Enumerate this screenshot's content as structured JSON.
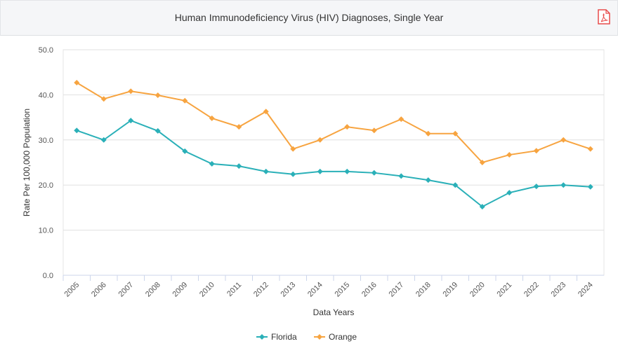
{
  "header": {
    "title": "Human Immunodeficiency Virus (HIV) Diagnoses, Single Year",
    "pdf_icon": "pdf-file-icon"
  },
  "chart_data": {
    "type": "line",
    "title": "Human Immunodeficiency Virus (HIV) Diagnoses, Single Year",
    "xlabel": "Data Years",
    "ylabel": "Rate Per 100,000 Population",
    "ylim": [
      0,
      50
    ],
    "yticks": [
      "0.0",
      "10.0",
      "20.0",
      "30.0",
      "40.0",
      "50.0"
    ],
    "grid": true,
    "legend": "bottom",
    "categories": [
      "2005",
      "2006",
      "2007",
      "2008",
      "2009",
      "2010",
      "2011",
      "2012",
      "2013",
      "2014",
      "2015",
      "2016",
      "2017",
      "2018",
      "2019",
      "2020",
      "2021",
      "2022",
      "2023",
      "2024"
    ],
    "series": [
      {
        "name": "Florida",
        "color": "#2ab0b8",
        "values": [
          32.1,
          30.0,
          34.3,
          32.0,
          27.5,
          24.7,
          24.2,
          23.0,
          22.4,
          23.0,
          23.0,
          22.7,
          22.0,
          21.1,
          20.0,
          15.2,
          18.3,
          19.7,
          20.0,
          19.6
        ]
      },
      {
        "name": "Orange",
        "color": "#f7a440",
        "values": [
          42.7,
          39.1,
          40.8,
          39.9,
          38.7,
          34.8,
          32.9,
          36.3,
          28.0,
          30.0,
          32.9,
          32.1,
          34.6,
          31.4,
          31.4,
          25.0,
          26.7,
          27.6,
          30.0,
          28.0
        ]
      }
    ]
  }
}
